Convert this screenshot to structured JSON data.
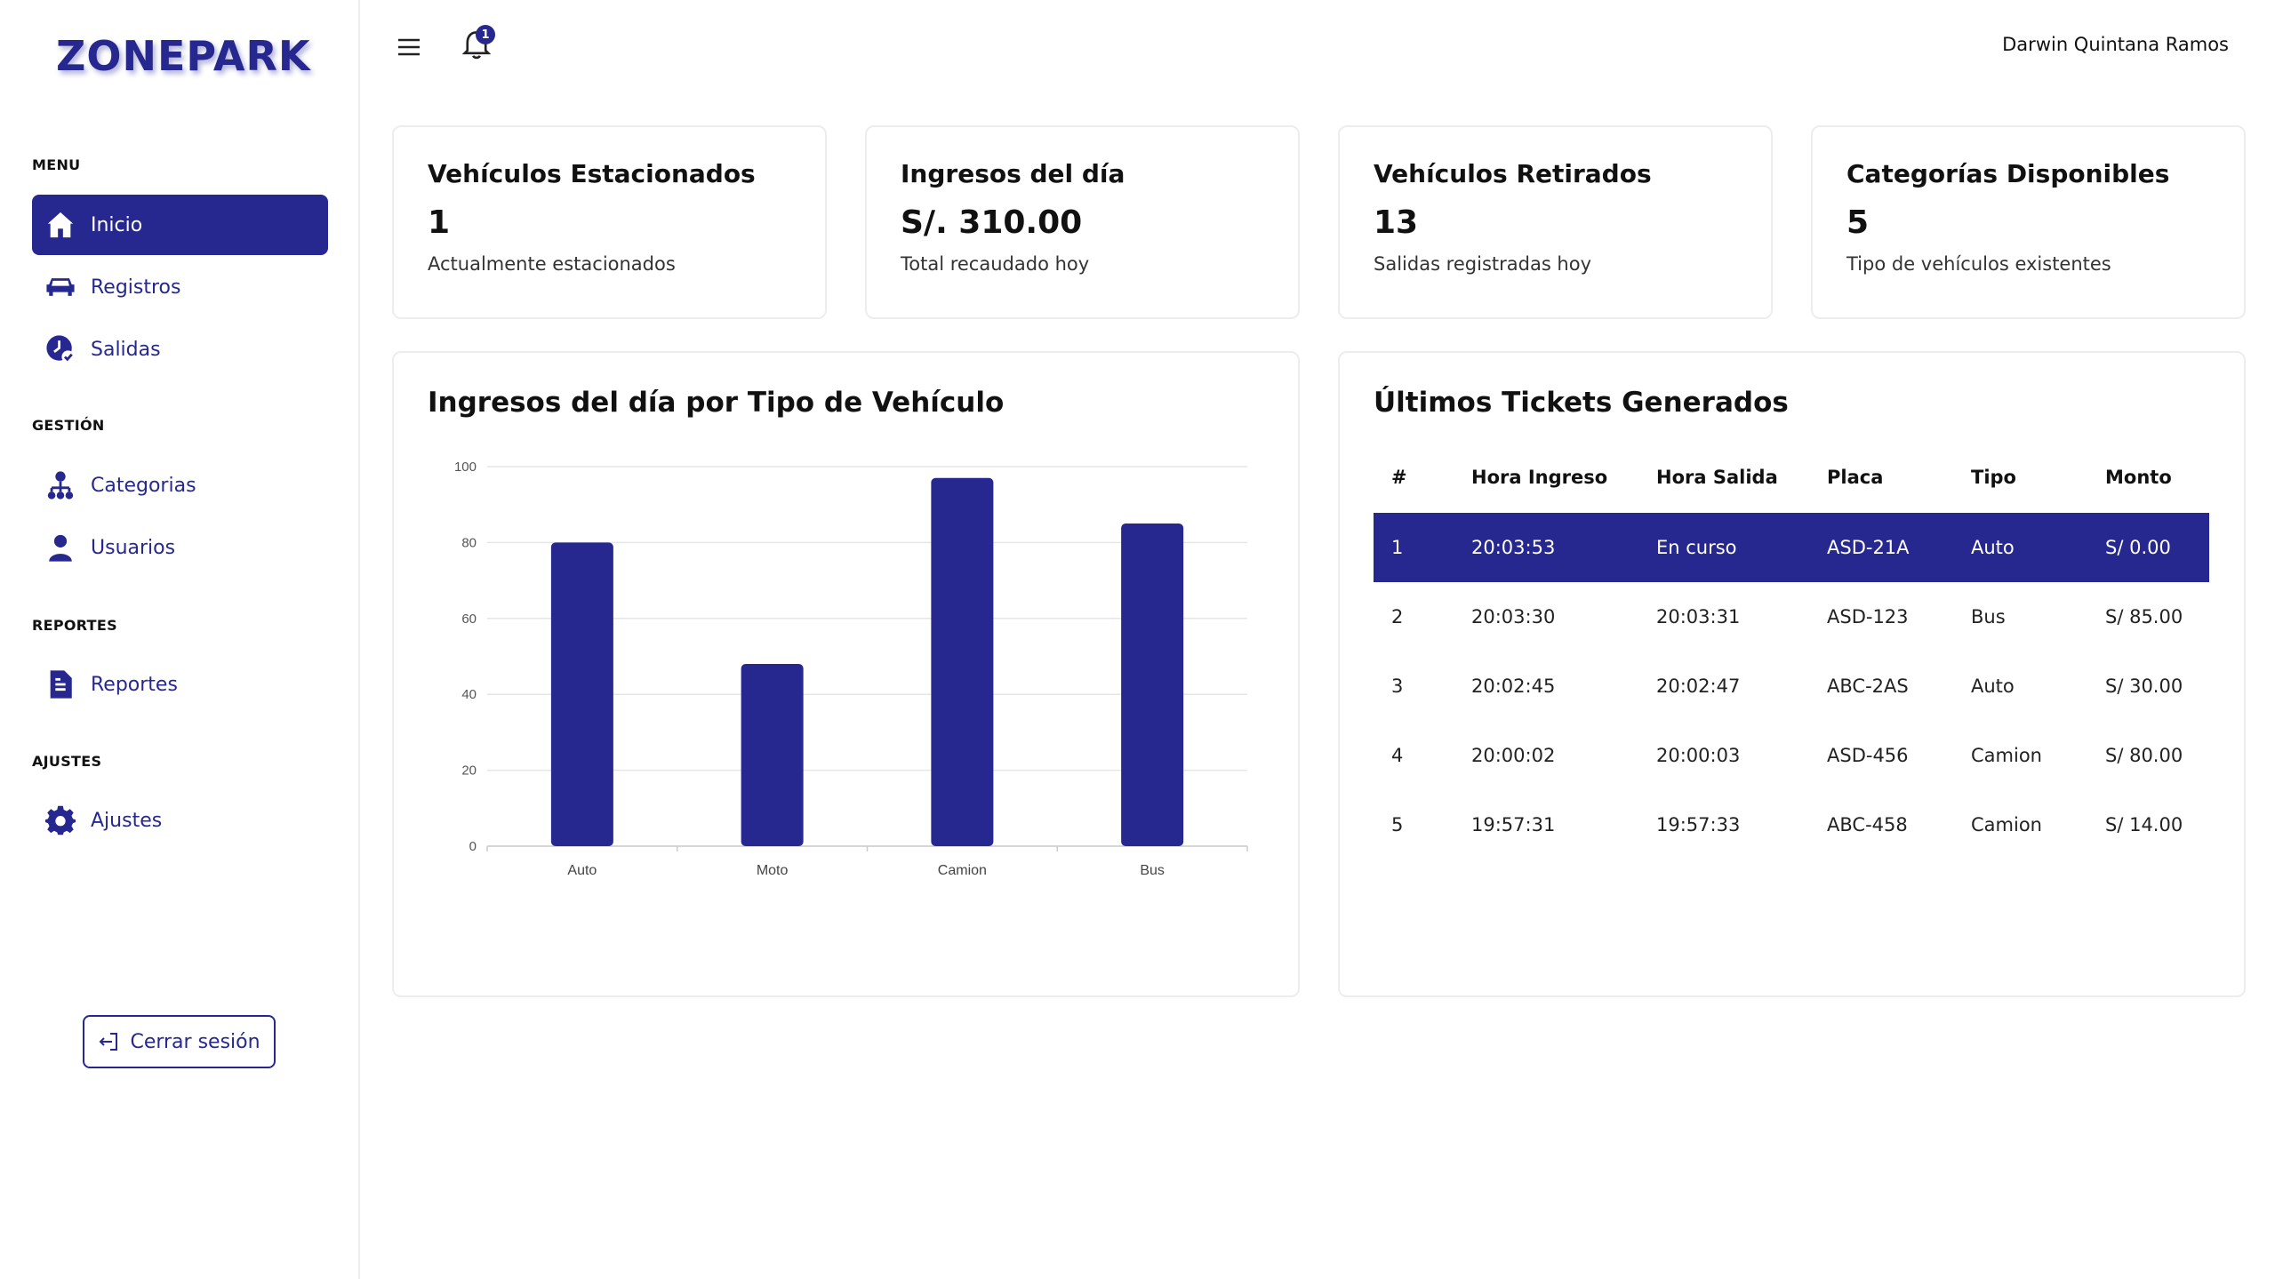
{
  "app": {
    "logo": "ZONEPARK"
  },
  "sidebar": {
    "sections": [
      {
        "title": "MENU",
        "items": [
          {
            "label": "Inicio",
            "icon": "home-icon",
            "active": true
          },
          {
            "label": "Registros",
            "icon": "car-icon"
          },
          {
            "label": "Salidas",
            "icon": "clock-check-icon"
          }
        ]
      },
      {
        "title": "GESTIÓN",
        "items": [
          {
            "label": "Categorias",
            "icon": "hierarchy-icon"
          },
          {
            "label": "Usuarios",
            "icon": "user-icon"
          }
        ]
      },
      {
        "title": "REPORTES",
        "items": [
          {
            "label": "Reportes",
            "icon": "report-icon"
          }
        ]
      },
      {
        "title": "AJUSTES",
        "items": [
          {
            "label": "Ajustes",
            "icon": "gear-icon"
          }
        ]
      }
    ],
    "logout_label": "Cerrar sesión"
  },
  "header": {
    "notifications_count": "1",
    "user_name": "Darwin Quintana Ramos"
  },
  "stats": [
    {
      "title": "Vehículos Estacionados",
      "value": "1",
      "desc": "Actualmente estacionados"
    },
    {
      "title": "Ingresos del día",
      "value": "S/. 310.00",
      "desc": "Total recaudado hoy"
    },
    {
      "title": "Vehículos Retirados",
      "value": "13",
      "desc": "Salidas registradas hoy"
    },
    {
      "title": "Categorías Disponibles",
      "value": "5",
      "desc": "Tipo de vehículos existentes"
    }
  ],
  "chart_panel": {
    "title": "Ingresos del día por Tipo de Vehículo"
  },
  "chart_data": {
    "type": "bar",
    "categories": [
      "Auto",
      "Moto",
      "Camion",
      "Bus"
    ],
    "values": [
      80,
      48,
      97,
      85
    ],
    "ylim": [
      0,
      100
    ],
    "yticks": [
      0,
      20,
      40,
      60,
      80,
      100
    ],
    "grid": true,
    "bar_color": "#26288f"
  },
  "tickets": {
    "title": "Últimos Tickets Generados",
    "columns": [
      "#",
      "Hora Ingreso",
      "Hora Salida",
      "Placa",
      "Tipo",
      "Monto"
    ],
    "rows": [
      [
        "1",
        "20:03:53",
        "En curso",
        "ASD-21A",
        "Auto",
        "S/ 0.00"
      ],
      [
        "2",
        "20:03:30",
        "20:03:31",
        "ASD-123",
        "Bus",
        "S/ 85.00"
      ],
      [
        "3",
        "20:02:45",
        "20:02:47",
        "ABC-2AS",
        "Auto",
        "S/ 30.00"
      ],
      [
        "4",
        "20:00:02",
        "20:00:03",
        "ASD-456",
        "Camion",
        "S/ 80.00"
      ],
      [
        "5",
        "19:57:31",
        "19:57:33",
        "ABC-458",
        "Camion",
        "S/ 14.00"
      ]
    ]
  },
  "colors": {
    "accent": "#26288f"
  }
}
